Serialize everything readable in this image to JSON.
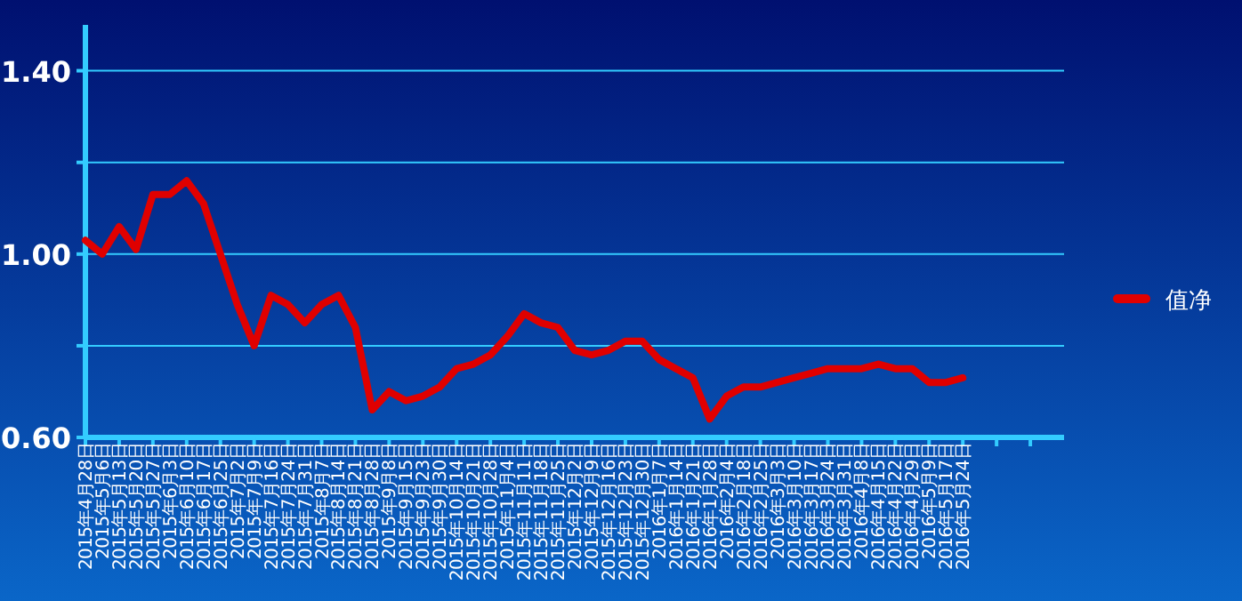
{
  "chart_data": {
    "type": "line",
    "categories": [
      "2015年4月28日",
      "2015年5月6日",
      "2015年5月13日",
      "2015年5月20日",
      "2015年5月27日",
      "2015年6月3日",
      "2015年6月10日",
      "2015年6月17日",
      "2015年6月25日",
      "2015年7月2日",
      "2015年7月9日",
      "2015年7月16日",
      "2015年7月24日",
      "2015年7月31日",
      "2015年8月7日",
      "2015年8月14日",
      "2015年8月21日",
      "2015年8月28日",
      "2015年9月8日",
      "2015年9月15日",
      "2015年9月23日",
      "2015年9月30日",
      "2015年10月14日",
      "2015年10月21日",
      "2015年10月28日",
      "2015年11月4日",
      "2015年11月11日",
      "2015年11月18日",
      "2015年11月25日",
      "2015年12月2日",
      "2015年12月9日",
      "2015年12月16日",
      "2015年12月23日",
      "2015年12月30日",
      "2016年1月7日",
      "2016年1月14日",
      "2016年1月21日",
      "2016年1月28日",
      "2016年2月4日",
      "2016年2月18日",
      "2016年2月25日",
      "2016年3月3日",
      "2016年3月10日",
      "2016年3月17日",
      "2016年3月24日",
      "2016年3月31日",
      "2016年4月8日",
      "2016年4月15日",
      "2016年4月22日",
      "2016年4月29日",
      "2016年5月9日",
      "2016年5月17日",
      "2016年5月24日",
      null,
      null,
      null,
      null,
      null
    ],
    "series": [
      {
        "name": "值净",
        "color": "#e00000",
        "values": [
          1.03,
          1.0,
          1.06,
          1.01,
          1.13,
          1.13,
          1.16,
          1.11,
          1.0,
          0.89,
          0.8,
          0.91,
          0.89,
          0.85,
          0.89,
          0.91,
          0.84,
          0.66,
          0.7,
          0.68,
          0.69,
          0.71,
          0.75,
          0.76,
          0.78,
          0.82,
          0.87,
          0.85,
          0.84,
          0.79,
          0.78,
          0.79,
          0.81,
          0.81,
          0.77,
          0.75,
          0.73,
          0.64,
          0.69,
          0.71,
          0.71,
          0.72,
          0.73,
          0.74,
          0.75,
          0.75,
          0.75,
          0.76,
          0.75,
          0.75,
          0.72,
          0.72,
          0.73,
          null,
          null,
          null,
          null,
          null
        ]
      }
    ],
    "ylim": [
      0.6,
      1.5
    ],
    "yticks": [
      {
        "value": 0.6,
        "label": "0.60"
      },
      {
        "value": 0.8,
        "label": null
      },
      {
        "value": 1.0,
        "label": "1.00"
      },
      {
        "value": 1.2,
        "label": null
      },
      {
        "value": 1.4,
        "label": "1.40"
      }
    ],
    "grid": "y",
    "legend": "right",
    "marker": "none",
    "line_style": "solid"
  }
}
